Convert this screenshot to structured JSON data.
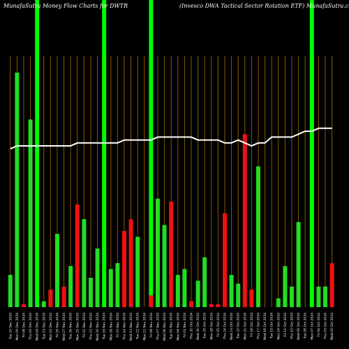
{
  "header": {
    "left_title": "MunafaSutra  Money Flow  Charts for DWTR",
    "right_title": "(Invesco  DWA Tactical Sector Rotation  ETF)  MunafaSutra.com"
  },
  "colors": {
    "background": "#000000",
    "up": "#22dd22",
    "down": "#ee1111",
    "vgrid": "#8a5a00",
    "highlight": "#00ff00",
    "price_line": "#ffffff"
  },
  "chart_data": {
    "type": "bar",
    "title": "MunafaSutra  Money Flow  Charts for DWTR",
    "subtitle": "(Invesco  DWA Tactical Sector Rotation  ETF)  MunafaSutra.com",
    "ylim": [
      0,
      100
    ],
    "highlight_columns": [
      4,
      14,
      21,
      45
    ],
    "categories": [
      "Tue 10 Dec 2024",
      "Mon 09 Dec 2024",
      "Fri 06 Dec 2024",
      "Thu 05 Dec 2024",
      "Wed 04 Dec 2024",
      "Tue 03 Dec 2024",
      "Mon 02 Dec 2024",
      "Fri 29 Nov 2024",
      "Wed 27 Nov 2024",
      "Tue 26 Nov 2024",
      "Mon 25 Nov 2024",
      "Fri 22 Nov 2024",
      "Thu 21 Nov 2024",
      "Wed 20 Nov 2024",
      "Tue 19 Nov 2024",
      "Mon 18 Nov 2024",
      "Fri 15 Nov 2024",
      "Thu 14 Nov 2024",
      "Wed 13 Nov 2024",
      "Tue 12 Nov 2024",
      "Mon 11 Nov 2024",
      "Fri 08 Nov 2024",
      "Thu 07 Nov 2024",
      "Wed 06 Nov 2024",
      "Tue 05 Nov 2024",
      "Mon 04 Nov 2024",
      "Fri 01 Nov 2024",
      "Thu 31 Oct 2024",
      "Wed 30 Oct 2024",
      "Tue 29 Oct 2024",
      "Mon 28 Oct 2024",
      "Fri 25 Oct 2024",
      "Thu 24 Oct 2024",
      "Wed 23 Oct 2024",
      "Tue 22 Oct 2024",
      "Mon 21 Oct 2024",
      "Fri 18 Oct 2024",
      "Thu 17 Oct 2024",
      "Wed 16 Oct 2024",
      "Tue 15 Oct 2024",
      "Mon 14 Oct 2024",
      "Fri 11 Oct 2024",
      "Thu 10 Oct 2024",
      "Wed 09 Oct 2024",
      "Tue 08 Oct 2024",
      "Mon 07 Oct 2024",
      "Fri 04 Oct 2024",
      "Thu 03 Oct 2024",
      "Wed 02 Oct 2024"
    ],
    "series": [
      {
        "values": [
          11,
          80,
          1,
          64,
          0,
          2,
          6,
          25,
          7,
          14,
          35,
          30,
          10,
          20,
          0,
          13,
          15,
          26,
          30,
          24,
          0,
          4,
          37,
          28,
          36,
          11,
          13,
          2,
          9,
          17,
          1,
          1,
          32,
          11,
          8,
          59,
          6,
          48,
          0,
          0,
          3,
          14,
          7,
          29,
          0,
          0,
          7,
          7,
          15
        ],
        "direction": [
          "up",
          "up",
          "down",
          "up",
          "up",
          "up",
          "down",
          "up",
          "down",
          "up",
          "down",
          "up",
          "up",
          "up",
          "up",
          "up",
          "up",
          "down",
          "down",
          "up",
          "up",
          "down",
          "up",
          "up",
          "down",
          "up",
          "up",
          "down",
          "up",
          "up",
          "down",
          "down",
          "down",
          "up",
          "up",
          "down",
          "down",
          "up",
          "up",
          "up",
          "up",
          "up",
          "up",
          "up",
          "up",
          "up",
          "up",
          "up",
          "down"
        ]
      },
      {
        "values": [
          54,
          55,
          55,
          55,
          55,
          55,
          55,
          55,
          55,
          55,
          56,
          56,
          56,
          56,
          56,
          56,
          56,
          57,
          57,
          57,
          57,
          57,
          58,
          58,
          58,
          58,
          58,
          58,
          57,
          57,
          57,
          57,
          56,
          56,
          57,
          56,
          55,
          56,
          56,
          58,
          58,
          58,
          58,
          59,
          60,
          60,
          61,
          61,
          61
        ]
      }
    ]
  }
}
